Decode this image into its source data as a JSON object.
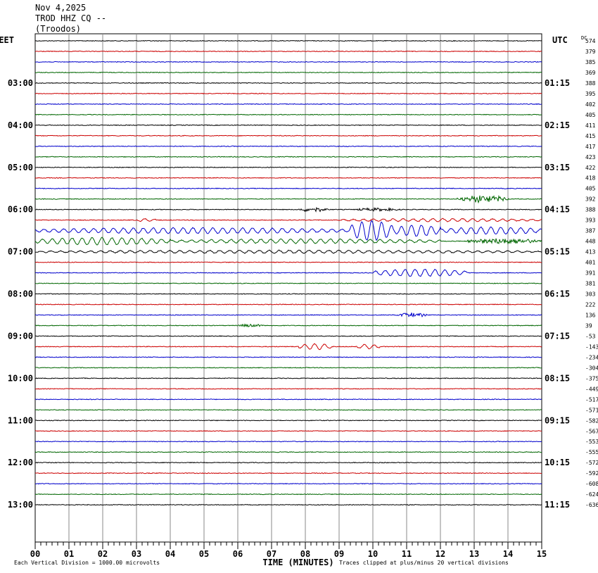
{
  "header": {
    "date": "Nov 4,2025",
    "station": "TROD HHZ CQ --",
    "location": "(Troodos)"
  },
  "colors": {
    "trace_cycle": [
      "#000000",
      "#cc0000",
      "#0000cc",
      "#006600"
    ],
    "grid": "#888888",
    "frame": "#000000"
  },
  "chart_data": {
    "type": "line",
    "title": "",
    "left_axis_label": "EET",
    "right_axis_label": "UTC",
    "dc_label": "DC",
    "xlabel": "TIME (MINUTES)",
    "xlim": [
      0,
      15
    ],
    "x_ticks": [
      "00",
      "01",
      "02",
      "03",
      "04",
      "05",
      "06",
      "07",
      "08",
      "09",
      "10",
      "11",
      "12",
      "13",
      "14",
      "15"
    ],
    "left_hour_labels": [
      {
        "label": "03:00",
        "trace": 4
      },
      {
        "label": "04:00",
        "trace": 8
      },
      {
        "label": "05:00",
        "trace": 12
      },
      {
        "label": "06:00",
        "trace": 16
      },
      {
        "label": "07:00",
        "trace": 20
      },
      {
        "label": "08:00",
        "trace": 24
      },
      {
        "label": "09:00",
        "trace": 28
      },
      {
        "label": "10:00",
        "trace": 32
      },
      {
        "label": "11:00",
        "trace": 36
      },
      {
        "label": "12:00",
        "trace": 40
      },
      {
        "label": "13:00",
        "trace": 44
      }
    ],
    "right_hour_labels": [
      {
        "label": "01:15",
        "trace": 4
      },
      {
        "label": "02:15",
        "trace": 8
      },
      {
        "label": "03:15",
        "trace": 12
      },
      {
        "label": "04:15",
        "trace": 16
      },
      {
        "label": "05:15",
        "trace": 20
      },
      {
        "label": "06:15",
        "trace": 24
      },
      {
        "label": "07:15",
        "trace": 28
      },
      {
        "label": "08:15",
        "trace": 32
      },
      {
        "label": "09:15",
        "trace": 36
      },
      {
        "label": "10:15",
        "trace": 40
      },
      {
        "label": "11:15",
        "trace": 44
      }
    ],
    "dc_offsets": [
      "574",
      "379",
      "385",
      "369",
      "388",
      "395",
      "402",
      "405",
      "411",
      "415",
      "417",
      "423",
      "422",
      "418",
      "405",
      "392",
      "388",
      "393",
      "387",
      "448",
      "413",
      "401",
      "391",
      "381",
      "303",
      "222",
      "136",
      "39",
      "-53",
      "-143",
      "-234",
      "-304",
      "-375",
      "-449",
      "-517",
      "-571",
      "-582",
      "-567",
      "-553",
      "-555",
      "-572",
      "-592",
      "-608",
      "-624",
      "-636"
    ],
    "events": [
      {
        "trace": 15,
        "start_min": 12.5,
        "end_min": 14.0,
        "amplitude": 5,
        "type": "burst"
      },
      {
        "trace": 16,
        "start_min": 7.8,
        "end_min": 8.7,
        "amplitude": 3,
        "type": "burst"
      },
      {
        "trace": 16,
        "start_min": 9.5,
        "end_min": 10.8,
        "amplitude": 2,
        "type": "burst"
      },
      {
        "trace": 17,
        "start_min": 3.0,
        "end_min": 3.6,
        "amplitude": 2,
        "type": "wave"
      },
      {
        "trace": 17,
        "start_min": 9.0,
        "end_min": 15.0,
        "amplitude": 2,
        "type": "wave"
      },
      {
        "trace": 18,
        "start_min": 0.0,
        "end_min": 9.3,
        "amplitude": 4,
        "type": "wave"
      },
      {
        "trace": 18,
        "start_min": 9.3,
        "end_min": 10.6,
        "amplitude": 14,
        "type": "wave"
      },
      {
        "trace": 18,
        "start_min": 10.6,
        "end_min": 12.0,
        "amplitude": 8,
        "type": "wave"
      },
      {
        "trace": 18,
        "start_min": 12.0,
        "end_min": 15.0,
        "amplitude": 5,
        "type": "wave"
      },
      {
        "trace": 19,
        "start_min": 0.0,
        "end_min": 4.0,
        "amplitude": 5,
        "type": "wave"
      },
      {
        "trace": 19,
        "start_min": 4.0,
        "end_min": 12.0,
        "amplitude": 3,
        "type": "wave"
      },
      {
        "trace": 19,
        "start_min": 12.8,
        "end_min": 15.0,
        "amplitude": 4,
        "type": "burst"
      },
      {
        "trace": 20,
        "start_min": 0.0,
        "end_min": 15.0,
        "amplitude": 2,
        "type": "wave"
      },
      {
        "trace": 22,
        "start_min": 10.0,
        "end_min": 12.8,
        "amplitude": 5,
        "type": "wave"
      },
      {
        "trace": 26,
        "start_min": 10.7,
        "end_min": 11.6,
        "amplitude": 3,
        "type": "burst"
      },
      {
        "trace": 27,
        "start_min": 6.0,
        "end_min": 6.8,
        "amplitude": 2,
        "type": "burst"
      },
      {
        "trace": 29,
        "start_min": 7.8,
        "end_min": 8.8,
        "amplitude": 4,
        "type": "wave"
      },
      {
        "trace": 29,
        "start_min": 9.5,
        "end_min": 10.2,
        "amplitude": 3,
        "type": "wave"
      }
    ],
    "footer_left": "Each Vertical Division = 1000.00 microvolts",
    "footer_right": "Traces clipped at plus/minus 20 vertical divisions"
  }
}
